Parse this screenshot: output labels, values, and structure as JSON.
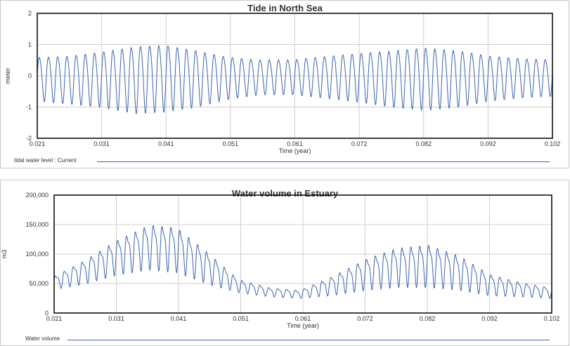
{
  "colors": {
    "series": "#3a64b0",
    "grid": "#cfcfcf",
    "frame": "#000000"
  },
  "chart_data": [
    {
      "type": "line",
      "title": "Tide in North Sea",
      "xlabel": "Time (year)",
      "ylabel": "meter",
      "xlim": [
        0.021,
        0.102
      ],
      "ylim": [
        -2,
        2
      ],
      "x_ticks": [
        "0.021",
        "0.031",
        "0.041",
        "0.051",
        "0.061",
        "0.072",
        "0.082",
        "0.092",
        "0.102"
      ],
      "y_ticks": [
        "2",
        "1",
        "0",
        "-1",
        "-2"
      ],
      "grid": true,
      "legend": "bottom-left",
      "series": [
        {
          "name": "tidal water level : Current",
          "description": "semi-diurnal tide with spring-neap modulation",
          "x": [
            0.021,
            0.026,
            0.031,
            0.0365,
            0.041,
            0.046,
            0.051,
            0.056,
            0.061,
            0.066,
            0.072,
            0.077,
            0.082,
            0.087,
            0.092,
            0.097,
            0.102
          ],
          "y_max": [
            0.7,
            0.75,
            0.9,
            1.1,
            1.15,
            0.95,
            0.7,
            0.6,
            0.6,
            0.72,
            0.85,
            0.95,
            1.05,
            0.95,
            0.75,
            0.65,
            0.6
          ],
          "y_min": [
            -0.8,
            -0.9,
            -1.0,
            -1.2,
            -1.15,
            -1.0,
            -0.75,
            -0.6,
            -0.6,
            -0.7,
            -0.85,
            -1.0,
            -1.1,
            -1.0,
            -0.8,
            -0.7,
            -0.65
          ]
        }
      ]
    },
    {
      "type": "line",
      "title": "Water volume in Estuary",
      "xlabel": "Time (year)",
      "ylabel": "m3",
      "xlim": [
        0.021,
        0.102
      ],
      "ylim": [
        0,
        200000
      ],
      "x_ticks": [
        "0.021",
        "0.031",
        "0.041",
        "0.051",
        "0.061",
        "0.072",
        "0.082",
        "0.092",
        "0.102"
      ],
      "y_ticks": [
        "200,000",
        "150,000",
        "100,000",
        "50,000",
        "0"
      ],
      "grid": true,
      "legend": "bottom-left",
      "series": [
        {
          "name": "Water volume",
          "x": [
            0.021,
            0.026,
            0.031,
            0.0365,
            0.041,
            0.046,
            0.051,
            0.056,
            0.061,
            0.066,
            0.072,
            0.077,
            0.082,
            0.087,
            0.092,
            0.097,
            0.102
          ],
          "y_max": [
            65000,
            95000,
            130000,
            160000,
            155000,
            110000,
            60000,
            45000,
            40000,
            65000,
            100000,
            120000,
            125000,
            105000,
            70000,
            55000,
            45000
          ],
          "y_min": [
            40000,
            50000,
            65000,
            75000,
            70000,
            50000,
            35000,
            28000,
            25000,
            30000,
            40000,
            45000,
            45000,
            40000,
            30000,
            28000,
            25000
          ]
        }
      ]
    }
  ]
}
